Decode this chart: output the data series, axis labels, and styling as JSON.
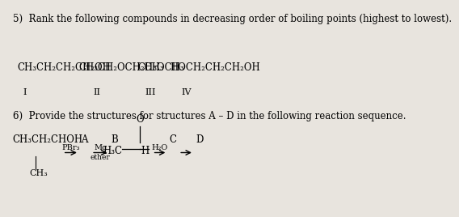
{
  "background_color": "#e8e4de",
  "title5": "5)  Rank the following compounds in decreasing order of boiling points (highest to lowest).",
  "title6": "6)  Provide the structures for structures A – D in the following reaction sequence.",
  "compound1": "CH₃CH₂CH₂CH₂OH",
  "compound1_label": "I",
  "compound2": "CH₃CH₂OCH₂CH₃",
  "compound2_label": "II",
  "compound3": "CH₃OCH₃",
  "compound3_label": "III",
  "compound4": "HOCH₂CH₂CH₂OH",
  "compound4_label": "IV",
  "rxn_start": "CH₃CH₂CHOH",
  "rxn_start_sub": "CH₃",
  "reagent1": "PBr₃",
  "step_a": "A",
  "reagent2": "Mg",
  "reagent2_sub": "ether",
  "step_b": "B",
  "aldehyde_O": "O",
  "aldehyde_left": "H₃C",
  "aldehyde_right": "H",
  "step_c": "C",
  "reagent3": "H₂O",
  "step_d": "D",
  "font_size_title": 8.5,
  "font_size_chem": 8.5,
  "font_size_label": 8.0,
  "font_size_small": 7.0
}
